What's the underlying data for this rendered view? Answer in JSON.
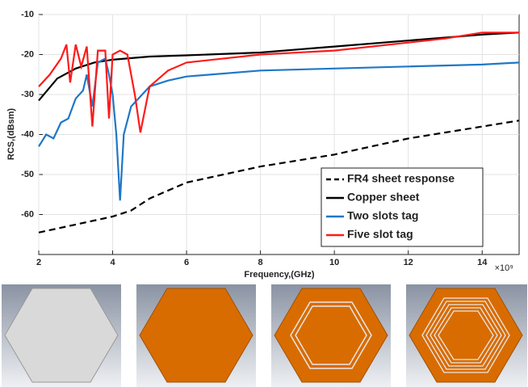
{
  "chart_data": {
    "type": "line",
    "x_label": "Frequency,(GHz)",
    "y_label": "RCS,(dBsm)",
    "x_exponent_label": "×10⁹",
    "xlim": [
      2,
      15
    ],
    "xticks": [
      2,
      4,
      6,
      8,
      10,
      12,
      14
    ],
    "ylim": [
      -70,
      -10
    ],
    "yticks": [
      -10,
      -20,
      -30,
      -40,
      -50,
      -60
    ],
    "grid": true,
    "legend_position": "lower right",
    "series": [
      {
        "name": "FR4 sheet response",
        "color": "#000000",
        "dash": "dashed",
        "x": [
          2,
          3,
          4,
          4.5,
          5,
          6,
          7,
          8,
          9,
          10,
          11,
          12,
          13,
          14,
          15
        ],
        "values": [
          -64.5,
          -62.5,
          -60.5,
          -59,
          -56,
          -52,
          -50,
          -48,
          -46.5,
          -45,
          -43,
          -41,
          -39.5,
          -38,
          -36.5
        ]
      },
      {
        "name": "Copper sheet",
        "color": "#000000",
        "dash": "solid",
        "x": [
          2,
          2.5,
          3,
          3.5,
          4,
          5,
          6,
          8,
          10,
          12,
          14,
          15
        ],
        "values": [
          -31.5,
          -26,
          -23.5,
          -22,
          -21.3,
          -20.5,
          -20.2,
          -19.5,
          -18,
          -16.5,
          -15,
          -14.5
        ]
      },
      {
        "name": "Two slots tag",
        "color": "#1f77c8",
        "dash": "solid",
        "x": [
          2,
          2.2,
          2.4,
          2.6,
          2.8,
          3,
          3.2,
          3.3,
          3.45,
          3.6,
          3.8,
          3.9,
          4.0,
          4.1,
          4.2,
          4.3,
          4.5,
          5,
          5.5,
          6,
          8,
          10,
          12,
          14,
          15
        ],
        "values": [
          -43,
          -40,
          -41,
          -37,
          -36,
          -31,
          -29,
          -25,
          -33,
          -22,
          -21,
          -25,
          -30,
          -40,
          -56.5,
          -40,
          -33,
          -28,
          -26.5,
          -25.5,
          -24,
          -23.5,
          -23,
          -22.5,
          -22
        ]
      },
      {
        "name": "Five slot tag",
        "color": "#ff1a1a",
        "dash": "solid",
        "x": [
          2,
          2.3,
          2.6,
          2.75,
          2.85,
          3.0,
          3.15,
          3.3,
          3.45,
          3.6,
          3.8,
          3.9,
          4.0,
          4.2,
          4.4,
          4.6,
          4.75,
          5.0,
          5.5,
          6,
          8,
          10,
          12,
          13,
          14,
          15
        ],
        "values": [
          -28,
          -25,
          -21,
          -17.5,
          -27,
          -17.5,
          -23,
          -18,
          -38,
          -19,
          -19,
          -36,
          -20,
          -19,
          -20,
          -30,
          -39.5,
          -28,
          -24,
          -22,
          -20,
          -19,
          -17,
          -16,
          -14.5,
          -14.5
        ]
      }
    ]
  }
}
